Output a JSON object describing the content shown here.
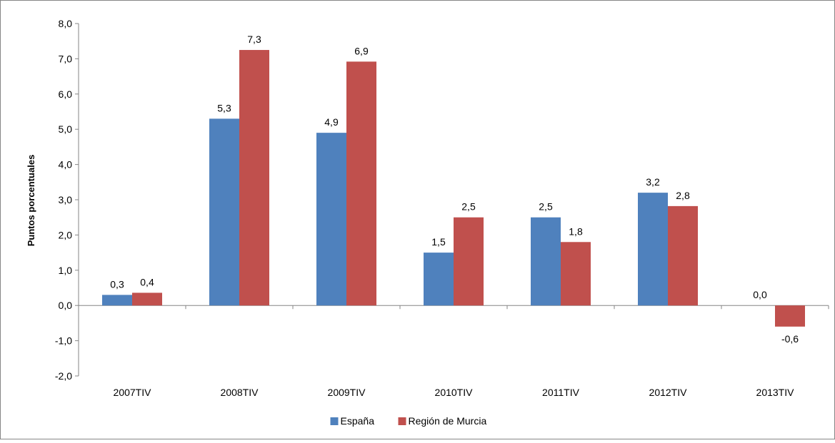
{
  "chart_data": {
    "type": "bar",
    "categories": [
      "2007TIV",
      "2008TIV",
      "2009TIV",
      "2010TIV",
      "2011TIV",
      "2012TIV",
      "2013TIV"
    ],
    "series": [
      {
        "name": "España",
        "values": [
          0.3,
          5.3,
          4.9,
          1.5,
          2.5,
          3.2,
          0.0
        ],
        "labels": [
          "0,3",
          "5,3",
          "4,9",
          "1,5",
          "2,5",
          "3,2",
          "0,0"
        ],
        "color": "#4F81BD"
      },
      {
        "name": "Región de Murcia",
        "values": [
          0.36,
          7.25,
          6.92,
          2.5,
          1.8,
          2.82,
          -0.6
        ],
        "labels": [
          "0,4",
          "7,3",
          "6,9",
          "2,5",
          "1,8",
          "2,8",
          "-0,6"
        ],
        "color": "#C0504D"
      }
    ],
    "title": "",
    "xlabel": "",
    "ylabel": "Puntos porcentuales",
    "ylim": [
      -2,
      8
    ],
    "yticks": [
      -2,
      -1,
      0,
      1,
      2,
      3,
      4,
      5,
      6,
      7,
      8
    ],
    "ytick_labels": [
      "-2,0",
      "-1,0",
      "0,0",
      "1,0",
      "2,0",
      "3,0",
      "4,0",
      "5,0",
      "6,0",
      "7,0",
      "8,0"
    ],
    "grid": false,
    "legend": "bottom"
  }
}
